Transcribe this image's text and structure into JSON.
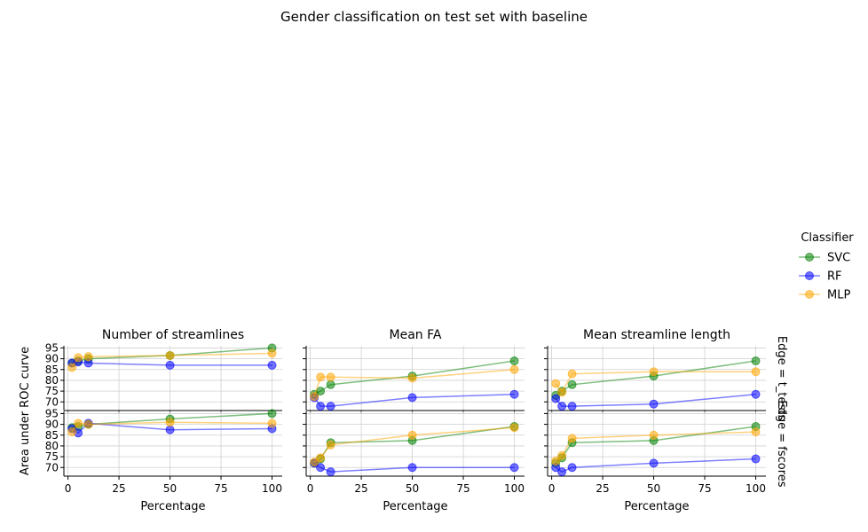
{
  "chart_data": {
    "type": "line",
    "title": "Gender classification on test set with baseline",
    "xlabel": "Percentage",
    "ylabel": "Area under ROC curve",
    "xlim": [
      -2,
      105
    ],
    "ylim": [
      66,
      96
    ],
    "x_ticks": [
      0,
      25,
      50,
      75,
      100
    ],
    "y_ticks": [
      70,
      75,
      80,
      85,
      90,
      95
    ],
    "grid": true,
    "columns": [
      "Number of streamlines",
      "Mean FA",
      "Mean streamline length"
    ],
    "rows": [
      "Edge = t_tests",
      "Edge = fscores"
    ],
    "legend": {
      "title": "Classifier",
      "placement": "right",
      "entries": [
        {
          "name": "SVC",
          "color": "#008000"
        },
        {
          "name": "RF",
          "color": "#0000ff"
        },
        {
          "name": "MLP",
          "color": "#ffa500"
        }
      ]
    },
    "panels": [
      {
        "row": 0,
        "col": 0,
        "series": [
          {
            "name": "SVC",
            "x": [
              2,
              5,
              10,
              50,
              100
            ],
            "y": [
              88,
              89,
              90,
              91.5,
              95
            ]
          },
          {
            "name": "RF",
            "x": [
              2,
              5,
              10,
              50,
              100
            ],
            "y": [
              88,
              88.5,
              88,
              87,
              87
            ]
          },
          {
            "name": "MLP",
            "x": [
              2,
              5,
              10,
              50,
              100
            ],
            "y": [
              86,
              90.5,
              91,
              91.5,
              92.5
            ]
          }
        ]
      },
      {
        "row": 0,
        "col": 1,
        "series": [
          {
            "name": "SVC",
            "x": [
              2,
              5,
              10,
              50,
              100
            ],
            "y": [
              73.5,
              75,
              78,
              82,
              89
            ]
          },
          {
            "name": "RF",
            "x": [
              2,
              5,
              10,
              50,
              100
            ],
            "y": [
              72,
              68,
              68,
              72,
              73.5
            ]
          },
          {
            "name": "MLP",
            "x": [
              2,
              5,
              10,
              50,
              100
            ],
            "y": [
              72.5,
              81.5,
              81.5,
              81,
              85
            ]
          }
        ]
      },
      {
        "row": 0,
        "col": 2,
        "series": [
          {
            "name": "SVC",
            "x": [
              2,
              5,
              10,
              50,
              100
            ],
            "y": [
              73,
              75,
              78,
              82,
              89
            ]
          },
          {
            "name": "RF",
            "x": [
              2,
              5,
              10,
              50,
              100
            ],
            "y": [
              71.5,
              68,
              68,
              69,
              73.5
            ]
          },
          {
            "name": "MLP",
            "x": [
              2,
              5,
              10,
              50,
              100
            ],
            "y": [
              78.5,
              74.5,
              83,
              84,
              84
            ]
          }
        ]
      },
      {
        "row": 1,
        "col": 0,
        "series": [
          {
            "name": "SVC",
            "x": [
              2,
              5,
              10,
              50,
              100
            ],
            "y": [
              88.5,
              89,
              90,
              92.5,
              95
            ]
          },
          {
            "name": "RF",
            "x": [
              2,
              5,
              10,
              50,
              100
            ],
            "y": [
              88,
              86,
              90.5,
              87.5,
              88
            ]
          },
          {
            "name": "MLP",
            "x": [
              2,
              5,
              10,
              50,
              100
            ],
            "y": [
              86.5,
              90.5,
              90,
              91,
              90.5
            ]
          }
        ]
      },
      {
        "row": 1,
        "col": 1,
        "series": [
          {
            "name": "SVC",
            "x": [
              2,
              5,
              10,
              50,
              100
            ],
            "y": [
              72,
              74,
              81.5,
              82.5,
              89
            ]
          },
          {
            "name": "RF",
            "x": [
              2,
              5,
              10,
              50,
              100
            ],
            "y": [
              72,
              70,
              68,
              70,
              70
            ]
          },
          {
            "name": "MLP",
            "x": [
              2,
              5,
              10,
              50,
              100
            ],
            "y": [
              72.5,
              74.5,
              80.5,
              85,
              88.5
            ]
          }
        ]
      },
      {
        "row": 1,
        "col": 2,
        "series": [
          {
            "name": "SVC",
            "x": [
              2,
              5,
              10,
              50,
              100
            ],
            "y": [
              72,
              74.5,
              81.5,
              82.5,
              89
            ]
          },
          {
            "name": "RF",
            "x": [
              2,
              5,
              10,
              50,
              100
            ],
            "y": [
              70,
              68,
              70,
              72,
              74
            ]
          },
          {
            "name": "MLP",
            "x": [
              2,
              5,
              10,
              50,
              100
            ],
            "y": [
              73,
              75.5,
              83.5,
              85,
              86.5
            ]
          }
        ]
      }
    ]
  }
}
